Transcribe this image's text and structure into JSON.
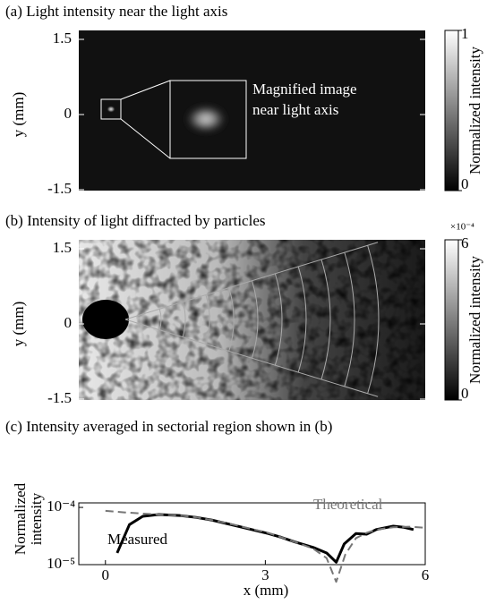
{
  "chart_data": [
    {
      "type": "image",
      "title": "(a) Light intensity near the light axis",
      "ylabel": "y (mm)",
      "ylim": [
        -1.5,
        1.5
      ],
      "yticks": [
        1.5,
        0,
        -1.5
      ],
      "colorbar": {
        "label": "Normalized  intensity",
        "lim": [
          0,
          1
        ],
        "ticks": [
          0,
          1
        ]
      },
      "annotation": [
        "Magnified image",
        "near light axis"
      ]
    },
    {
      "type": "image",
      "title": "(b) Intensity of light diffracted by particles",
      "ylabel": "y (mm)",
      "ylim": [
        -1.5,
        1.5
      ],
      "yticks": [
        1.5,
        0,
        -1.5
      ],
      "colorbar": {
        "label": "Normalized intensity",
        "lim": [
          0,
          6
        ],
        "ticks": [
          0,
          6
        ],
        "scale": "×10⁻⁴"
      }
    },
    {
      "type": "line",
      "title": "(c) Intensity averaged in sectorial region shown in (b)",
      "xlabel": "x (mm)",
      "ylabel": [
        "Normalized",
        "intensity"
      ],
      "log_y": true,
      "xlim": [
        -0.5,
        6
      ],
      "xticks": [
        0,
        3,
        6
      ],
      "ylim": [
        1e-05,
        0.00012
      ],
      "yticks": [
        {
          "value": 0.0001,
          "label": "10⁻⁴"
        },
        {
          "value": 1e-05,
          "label": "10⁻⁵"
        }
      ],
      "series": [
        {
          "name": "Measured",
          "color": "#000000",
          "dash": false,
          "x": [
            0.22,
            0.45,
            0.7,
            1.0,
            1.4,
            1.7,
            2.0,
            2.4,
            2.7,
            3.05,
            3.3,
            3.55,
            3.9,
            4.15,
            4.33,
            4.48,
            4.7,
            4.9,
            5.08,
            5.4,
            5.6,
            5.78
          ],
          "values": [
            1.6e-05,
            5e-05,
            7e-05,
            7.5e-05,
            7.2e-05,
            6.7e-05,
            6e-05,
            4.9e-05,
            4.2e-05,
            3.5e-05,
            3e-05,
            2.5e-05,
            2e-05,
            1.6e-05,
            1.1e-05,
            2.3e-05,
            3.5e-05,
            3.4e-05,
            4.1e-05,
            4.7e-05,
            4.5e-05,
            4.1e-05
          ]
        },
        {
          "name": "Theoretical",
          "color": "#777777",
          "dash": true,
          "x": [
            0,
            0.35,
            0.7,
            1.0,
            1.4,
            1.7,
            2.0,
            2.4,
            2.7,
            3.05,
            3.3,
            3.55,
            3.9,
            4.15,
            4.33,
            4.5,
            4.7,
            4.9,
            5.1,
            5.4,
            5.7,
            6.0
          ],
          "values": [
            8.7e-05,
            8.2e-05,
            7.8e-05,
            7.5e-05,
            7.2e-05,
            6.7e-05,
            6e-05,
            5e-05,
            4.3e-05,
            3.6e-05,
            3e-05,
            2.5e-05,
            1.9e-05,
            1.3e-05,
            5e-06,
            1.5e-05,
            2.9e-05,
            3.6e-05,
            4.1e-05,
            4.5e-05,
            4.6e-05,
            4.4e-05
          ]
        }
      ]
    }
  ]
}
